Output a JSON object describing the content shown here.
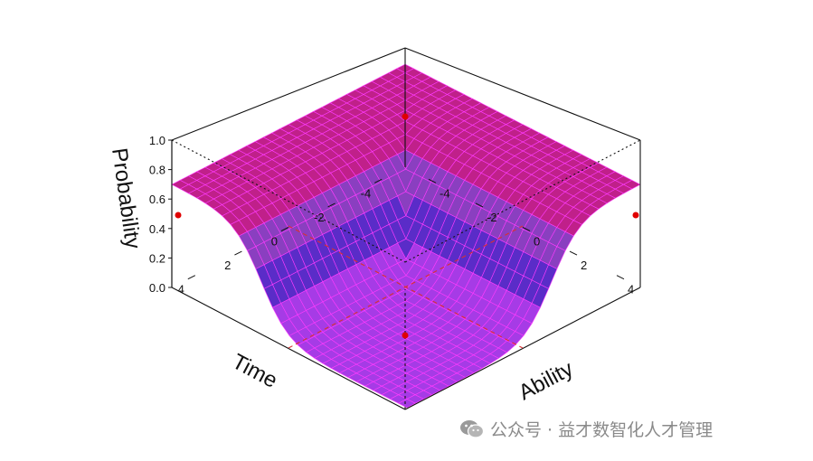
{
  "chart_data": {
    "type": "surface3d",
    "zlabel": "Probability",
    "xlabel": "Time",
    "ylabel": "Ability",
    "z_ticks": [
      "0.0",
      "0.2",
      "0.4",
      "0.6",
      "0.8",
      "1.0"
    ],
    "z_range": [
      0,
      1
    ],
    "time_ticks": [
      "-4",
      "-2",
      "0",
      "2",
      "4"
    ],
    "ability_ticks": [
      "-4",
      "-2",
      "0",
      "2",
      "4"
    ],
    "time_range": [
      -5,
      5
    ],
    "ability_range": [
      -5,
      5
    ],
    "surface": {
      "description_values": "probability ridge, max ≈ 0.7 on the back edges, ≈ 0 at the front",
      "max_probability": 0.7,
      "min_probability": 0.0
    },
    "colors": {
      "surface_high": "#c0208a",
      "surface_mid": "#5a2cc8",
      "surface_green": "#6a9a4a",
      "surface_edge": "#ff3bff",
      "ref_line": "#d93030",
      "marker": "#e00000"
    }
  },
  "watermark": {
    "text": "公众号 · 益才数智化人才管理"
  }
}
